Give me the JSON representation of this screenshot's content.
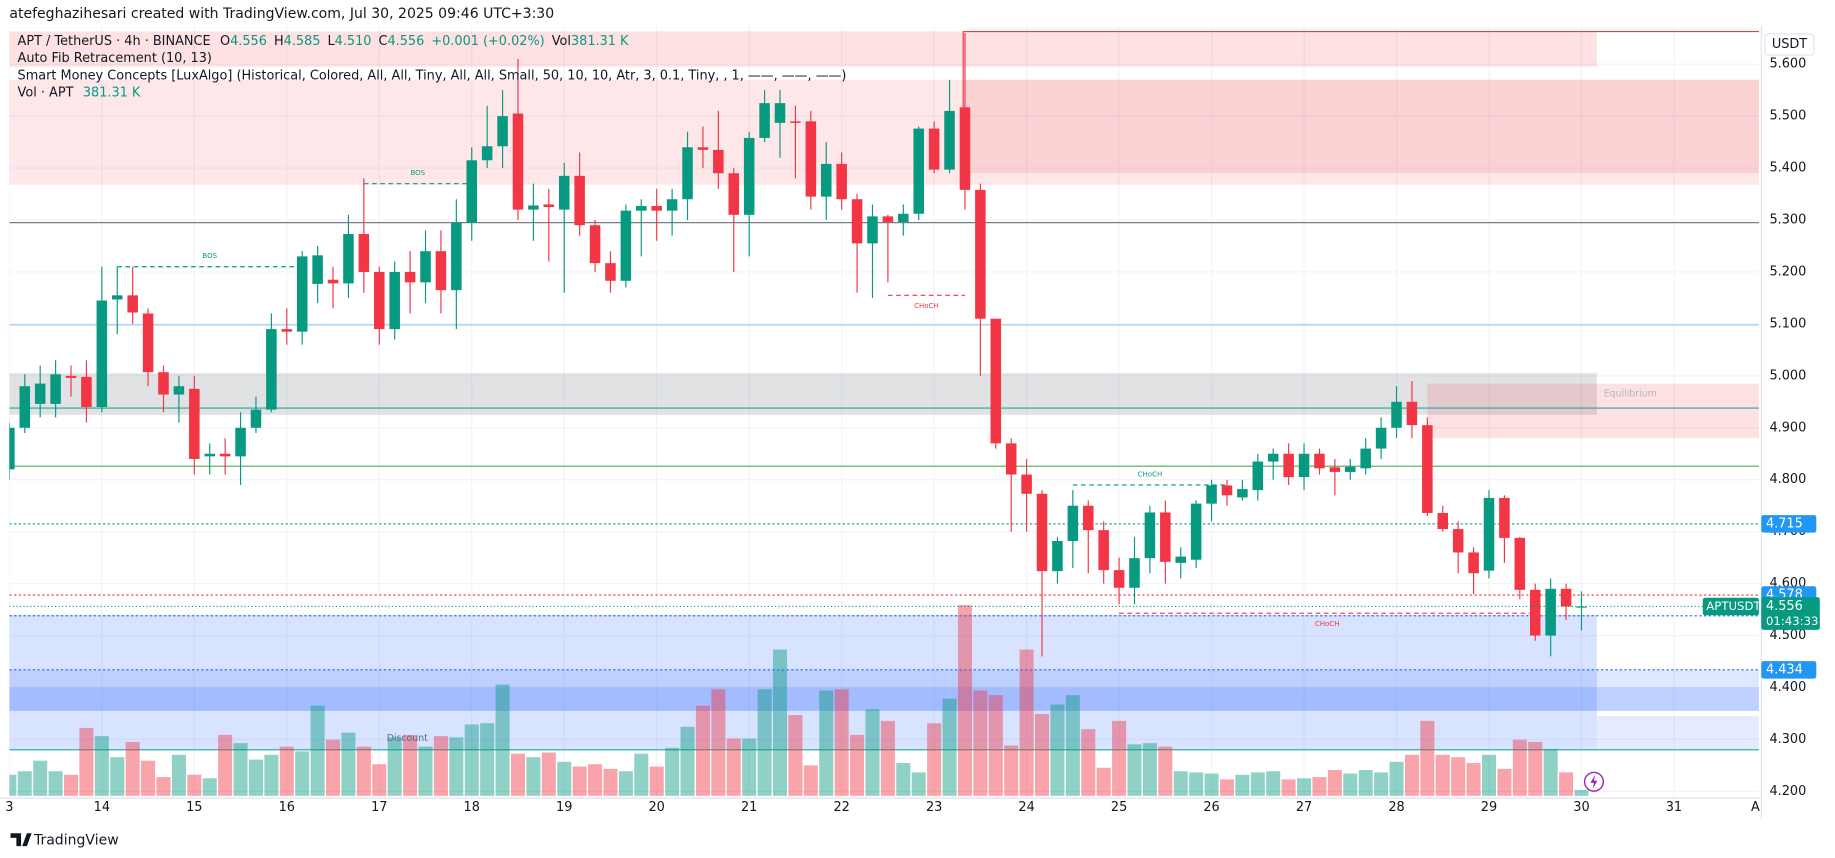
{
  "header": {
    "credit": "atefeghazihesari created with TradingView.com, Jul 30, 2025 09:46 UTC+3:30"
  },
  "legend": {
    "symbol": "APT / TetherUS · 4h · BINANCE",
    "ohlc": [
      {
        "key": "O",
        "text": "4.556"
      },
      {
        "key": "H",
        "text": "4.585"
      },
      {
        "key": "L",
        "text": "4.510"
      },
      {
        "key": "C",
        "text": "4.556"
      }
    ],
    "change": "+0.001 (+0.02%)",
    "vol_key": "Vol",
    "vol_text": "381.31 K",
    "indicators": [
      "Auto Fib Retracement (10, 13)",
      "Smart Money Concepts [LuxAlgo] (Historical, Colored, All, All, Tiny, All, All, Small, 50, 10, 10, Atr, 3, 0.1, Tiny, , 1, ——, ——, ——)"
    ],
    "volume_name": "Vol · APT"
  },
  "footer": {
    "brand": "TradingView"
  },
  "chart_data": {
    "type": "candlestick",
    "currency": "USDT",
    "symbol_tag": "APTUSDT",
    "countdown": "01:43:33",
    "up_color": "#089981",
    "down_color": "#f23645",
    "grid": true,
    "categories": [
      "3",
      null,
      null,
      null,
      null,
      null,
      "14",
      null,
      null,
      null,
      null,
      null,
      "15",
      null,
      null,
      null,
      null,
      null,
      "16",
      null,
      null,
      null,
      null,
      null,
      "17",
      null,
      null,
      null,
      null,
      null,
      "18",
      null,
      null,
      null,
      null,
      null,
      "19",
      null,
      null,
      null,
      null,
      null,
      "20",
      null,
      null,
      null,
      null,
      null,
      "21",
      null,
      null,
      null,
      null,
      null,
      "22",
      null,
      null,
      null,
      null,
      null,
      "23",
      null,
      null,
      null,
      null,
      null,
      "24",
      null,
      null,
      null,
      null,
      null,
      "25",
      null,
      null,
      null,
      null,
      null,
      "26",
      null,
      null,
      null,
      null,
      null,
      "27",
      null,
      null,
      null,
      null,
      null,
      "28",
      null,
      null,
      null,
      null,
      null,
      "29",
      null,
      null,
      null,
      null,
      null,
      "30",
      null,
      null,
      null,
      null,
      null,
      "31",
      null,
      null,
      null,
      null,
      null,
      "A"
    ],
    "open": [
      4.82,
      4.9,
      4.946,
      4.946,
      5.0,
      4.998,
      4.94,
      5.147,
      5.155,
      5.12,
      5.007,
      4.964,
      4.975,
      4.845,
      4.85,
      4.845,
      4.9,
      4.935,
      5.09,
      5.085,
      5.177,
      5.185,
      5.178,
      5.273,
      5.2,
      5.09,
      5.2,
      5.18,
      5.24,
      5.165,
      5.295,
      5.415,
      5.442,
      5.505,
      5.32,
      5.33,
      5.32,
      5.385,
      5.29,
      5.217,
      5.183,
      5.318,
      5.327,
      5.318,
      5.34,
      5.44,
      5.435,
      5.39,
      5.31,
      5.458,
      5.487,
      5.49,
      5.49,
      5.345,
      5.408,
      5.34,
      5.255,
      5.307,
      5.296,
      5.312,
      5.476,
      5.397,
      5.517,
      5.358,
      5.11,
      4.87,
      4.81,
      4.773,
      4.624,
      4.682,
      4.75,
      4.703,
      4.626,
      4.592,
      4.649,
      4.737,
      4.64,
      4.646,
      4.754,
      4.789,
      4.766,
      4.78,
      4.835,
      4.85,
      4.805,
      4.85,
      4.824,
      4.815,
      4.822,
      4.86,
      4.9,
      4.95,
      4.905,
      4.736,
      4.705,
      4.66,
      4.625,
      4.765,
      4.688,
      4.588,
      4.5,
      4.59,
      4.556,
      null,
      null,
      null,
      null,
      null,
      null,
      null,
      null,
      null,
      null,
      null,
      null
    ],
    "high": [
      4.91,
      5.003,
      5.02,
      5.03,
      5.02,
      5.03,
      5.21,
      5.21,
      5.21,
      5.13,
      5.02,
      5.0,
      5.0,
      4.87,
      4.88,
      4.93,
      4.96,
      5.12,
      5.13,
      5.24,
      5.25,
      5.21,
      5.31,
      5.38,
      5.21,
      5.22,
      5.24,
      5.28,
      5.28,
      5.34,
      5.44,
      5.52,
      5.55,
      5.61,
      5.37,
      5.36,
      5.41,
      5.43,
      5.3,
      5.24,
      5.33,
      5.34,
      5.36,
      5.36,
      5.47,
      5.48,
      5.51,
      5.4,
      5.47,
      5.55,
      5.55,
      5.52,
      5.51,
      5.45,
      5.43,
      5.35,
      5.33,
      5.31,
      5.33,
      5.48,
      5.49,
      5.57,
      5.66,
      5.37,
      5.11,
      4.88,
      4.84,
      4.78,
      4.69,
      4.78,
      4.76,
      4.72,
      4.65,
      4.69,
      4.75,
      4.76,
      4.67,
      4.76,
      4.8,
      4.8,
      4.8,
      4.85,
      4.86,
      4.87,
      4.87,
      4.86,
      4.84,
      4.84,
      4.88,
      4.92,
      4.98,
      4.99,
      4.92,
      4.75,
      4.72,
      4.67,
      4.78,
      4.77,
      4.69,
      4.6,
      4.61,
      4.6,
      4.585,
      null,
      null,
      null,
      null,
      null,
      null,
      null,
      null,
      null,
      null,
      null,
      null
    ],
    "low": [
      4.8,
      4.89,
      4.92,
      4.92,
      4.96,
      4.91,
      4.93,
      5.08,
      5.1,
      4.98,
      4.93,
      4.91,
      4.81,
      4.81,
      4.81,
      4.79,
      4.89,
      4.93,
      5.06,
      5.06,
      5.14,
      5.13,
      5.15,
      5.16,
      5.06,
      5.07,
      5.12,
      5.14,
      5.12,
      5.09,
      5.26,
      5.4,
      5.4,
      5.3,
      5.26,
      5.22,
      5.16,
      5.27,
      5.2,
      5.16,
      5.17,
      5.23,
      5.26,
      5.27,
      5.3,
      5.4,
      5.36,
      5.2,
      5.23,
      5.45,
      5.42,
      5.38,
      5.32,
      5.3,
      5.32,
      5.16,
      5.15,
      5.18,
      5.27,
      5.3,
      5.39,
      5.39,
      5.32,
      5.0,
      4.86,
      4.7,
      4.7,
      4.46,
      4.6,
      4.63,
      4.62,
      4.6,
      4.56,
      4.56,
      4.62,
      4.6,
      4.61,
      4.63,
      4.72,
      4.75,
      4.76,
      4.76,
      4.8,
      4.79,
      4.78,
      4.81,
      4.77,
      4.8,
      4.81,
      4.84,
      4.88,
      4.88,
      4.73,
      4.7,
      4.62,
      4.58,
      4.61,
      4.64,
      4.57,
      4.49,
      4.46,
      4.53,
      4.51,
      null,
      null,
      null,
      null,
      null,
      null,
      null,
      null,
      null,
      null,
      null,
      null
    ],
    "close": [
      4.9,
      4.98,
      4.985,
      5.003,
      4.996,
      4.94,
      5.145,
      5.155,
      5.122,
      5.007,
      4.964,
      4.98,
      4.84,
      4.85,
      4.845,
      4.9,
      4.935,
      5.09,
      5.085,
      5.23,
      5.232,
      5.178,
      5.273,
      5.2,
      5.09,
      5.2,
      5.18,
      5.24,
      5.165,
      5.295,
      5.415,
      5.442,
      5.5,
      5.32,
      5.328,
      5.325,
      5.385,
      5.29,
      5.217,
      5.183,
      5.318,
      5.327,
      5.318,
      5.34,
      5.44,
      5.435,
      5.39,
      5.31,
      5.458,
      5.525,
      5.525,
      5.487,
      5.345,
      5.408,
      5.34,
      5.255,
      5.307,
      5.296,
      5.312,
      5.476,
      5.397,
      5.51,
      5.358,
      5.11,
      4.87,
      4.81,
      4.773,
      4.624,
      4.682,
      4.75,
      4.703,
      4.626,
      4.592,
      4.649,
      4.737,
      4.642,
      4.652,
      4.754,
      4.789,
      4.77,
      4.782,
      4.835,
      4.85,
      4.805,
      4.85,
      4.822,
      4.815,
      4.825,
      4.86,
      4.9,
      4.95,
      4.905,
      4.736,
      4.705,
      4.66,
      4.62,
      4.765,
      4.688,
      4.588,
      4.5,
      4.59,
      4.556,
      4.556,
      null,
      null,
      null,
      null,
      null,
      null,
      null,
      null,
      null,
      null,
      null,
      null
    ],
    "volume": [
      1368,
      1596,
      2280,
      1596,
      1368,
      4408,
      3876,
      2508,
      3496,
      2280,
      1216,
      2660,
      1368,
      1140,
      3952,
      3420,
      2356,
      2660,
      3192,
      2888,
      5852,
      3648,
      4104,
      3192,
      2052,
      3800,
      3952,
      3192,
      3876,
      3800,
      4636,
      4712,
      7220,
      2736,
      2508,
      2812,
      2204,
      1900,
      2052,
      1748,
      1596,
      2736,
      1900,
      3116,
      4484,
      5852,
      6916,
      3724,
      3724,
      6916,
      9500,
      5244,
      1976,
      6840,
      6916,
      3952,
      5624,
      4864,
      2128,
      1520,
      4712,
      6308,
      12388,
      6840,
      6536,
      3268,
      9500,
      5320,
      5928,
      6536,
      4332,
      1824,
      4864,
      3344,
      3420,
      3192,
      1596,
      1520,
      1444,
      1064,
      1368,
      1520,
      1596,
      1064,
      1140,
      1216,
      1672,
      1444,
      1672,
      1520,
      2204,
      2660,
      4864,
      2660,
      2508,
      2128,
      2660,
      1748,
      3648,
      3496,
      3040,
      1520,
      381.31,
      null,
      null,
      null,
      null,
      null,
      null,
      null,
      null,
      null,
      null,
      null,
      null
    ],
    "ylim": [
      4.187,
      5.674
    ],
    "yticks": [
      {
        "value": 5.6,
        "label": "5.600"
      },
      {
        "value": 5.5,
        "label": "5.500"
      },
      {
        "value": 5.4,
        "label": "5.400"
      },
      {
        "value": 5.3,
        "label": "5.300"
      },
      {
        "value": 5.2,
        "label": "5.200"
      },
      {
        "value": 5.1,
        "label": "5.100"
      },
      {
        "value": 5.0,
        "label": "5.000"
      },
      {
        "value": 4.9,
        "label": "4.900"
      },
      {
        "value": 4.8,
        "label": "4.800"
      },
      {
        "value": 4.7,
        "label": "4.700"
      },
      {
        "value": 4.6,
        "label": "4.600"
      },
      {
        "value": 4.5,
        "label": "4.500"
      },
      {
        "value": 4.4,
        "label": "4.400"
      },
      {
        "value": 4.3,
        "label": "4.300"
      },
      {
        "value": 4.2,
        "label": "4.200"
      }
    ],
    "zones": [
      {
        "from": 0,
        "to": 103,
        "top": 5.663,
        "bottom": 5.595,
        "color": "rgba(242,54,69,0.15)"
      },
      {
        "from": 0,
        "to": null,
        "top": 5.57,
        "bottom": 5.368,
        "color": "rgba(242,54,69,0.12)"
      },
      {
        "from": 62,
        "to": null,
        "top": 5.57,
        "bottom": 5.39,
        "color": "rgba(242,54,69,0.12)"
      },
      {
        "from": 0,
        "to": 103,
        "top": 5.005,
        "bottom": 4.925,
        "color": "rgba(120,123,134,0.22)",
        "label": "Equilibrium",
        "label_color": "#b2b5be"
      },
      {
        "from": 92,
        "to": null,
        "top": 4.985,
        "bottom": 4.88,
        "color": "rgba(242,54,69,0.15)"
      },
      {
        "from": 0,
        "to": 103,
        "top": 4.54,
        "bottom": 4.28,
        "color": "rgba(41,98,255,0.18)",
        "label": "Discount",
        "label_color": "#5b6b8c"
      },
      {
        "from": 103,
        "to": null,
        "top": 4.345,
        "bottom": 4.28,
        "color": "rgba(41,98,255,0.12)"
      },
      {
        "from": 0,
        "to": null,
        "top": 4.434,
        "bottom": 4.4,
        "color": "rgba(41,98,255,0.15)"
      },
      {
        "from": 0,
        "to": null,
        "top": 4.4,
        "bottom": 4.355,
        "color": "rgba(41,98,255,0.3)"
      }
    ],
    "hlines": [
      {
        "price": 5.295,
        "color": "#787b86",
        "style": "solid"
      },
      {
        "price": 5.098,
        "color": "#90caf9",
        "style": "solid"
      },
      {
        "price": 4.938,
        "color": "#26a69a",
        "style": "solid"
      },
      {
        "price": 4.826,
        "color": "#4caf50",
        "style": "solid"
      },
      {
        "price": 4.715,
        "color": "#26a69a",
        "style": "dotted",
        "tag": true,
        "label_color": "#2196f3"
      },
      {
        "price": 4.578,
        "color": "#f23645",
        "style": "dotted",
        "tag": true,
        "label_color": "#2196f3"
      },
      {
        "price": 4.538,
        "color": "#2962ff",
        "style": "dotted",
        "tag": true,
        "label_color": "#2196f3"
      },
      {
        "price": 4.434,
        "color": "#2962ff",
        "style": "dotted",
        "tag": true,
        "label_color": "#2196f3"
      },
      {
        "price": 4.28,
        "color": "#26a69a",
        "style": "solid"
      }
    ],
    "annotations": [
      {
        "text": "BOS",
        "level": 5.37,
        "from": 23,
        "to": 30,
        "color": "#089981"
      },
      {
        "text": "BOS",
        "level": 5.21,
        "from": 7,
        "to": 19,
        "color": "#089981"
      },
      {
        "text": "CHoCH",
        "level": 5.155,
        "from": 57,
        "to": 62,
        "color": "#f23645"
      },
      {
        "text": "CHoCH",
        "level": 4.79,
        "from": 69,
        "to": 79,
        "color": "#089981"
      },
      {
        "text": "CHoCH",
        "level": 4.543,
        "from": 72,
        "to": 99,
        "color": "#f23645"
      }
    ]
  }
}
